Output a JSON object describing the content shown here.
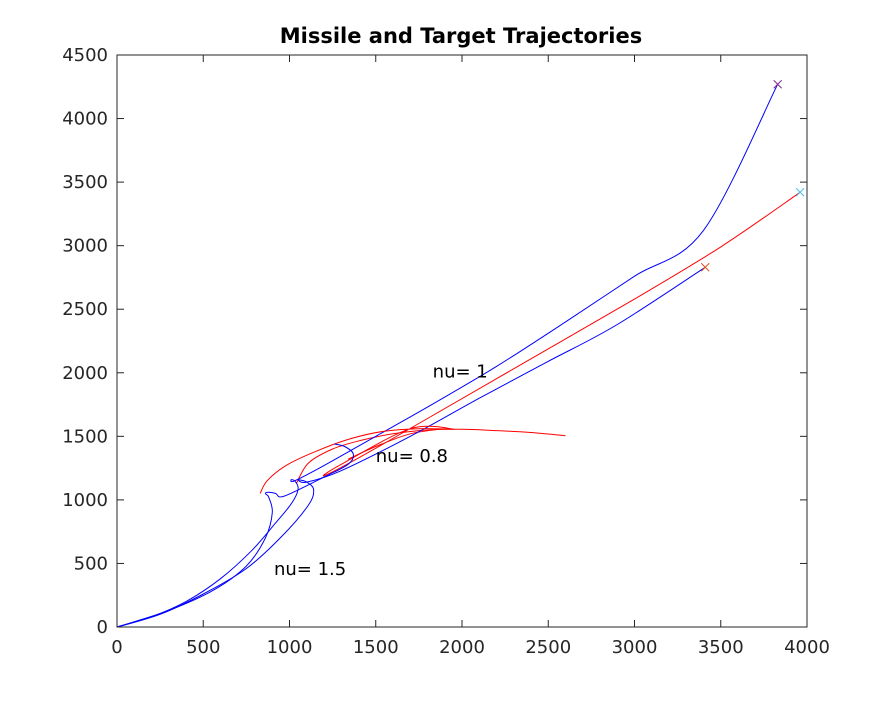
{
  "chart_data": {
    "type": "line",
    "title": "Missile and Target Trajectories",
    "xlabel": "",
    "ylabel": "",
    "xlim": [
      0,
      4000
    ],
    "ylim": [
      0,
      4500
    ],
    "xticks": [
      "0",
      "500",
      "1000",
      "1500",
      "2000",
      "2500",
      "3000",
      "3500",
      "4000"
    ],
    "yticks": [
      "0",
      "500",
      "1000",
      "1500",
      "2000",
      "2500",
      "3000",
      "3500",
      "4000",
      "4500"
    ],
    "grid": false,
    "annotations": [
      {
        "text": "nu= 1",
        "x": 1830,
        "y": 2010
      },
      {
        "text": "nu= 0.8",
        "x": 1500,
        "y": 1345
      },
      {
        "text": "nu= 1.5",
        "x": 910,
        "y": 455
      }
    ],
    "series": [
      {
        "kind": "target-path",
        "color": "#ff0000",
        "points": [
          [
            1040,
            1130
          ],
          [
            1110,
            1290
          ],
          [
            1250,
            1400
          ],
          [
            1420,
            1470
          ],
          [
            1600,
            1520
          ],
          [
            1800,
            1550
          ],
          [
            2000,
            1555
          ],
          [
            2200,
            1545
          ],
          [
            2400,
            1530
          ],
          [
            2600,
            1505
          ]
        ]
      },
      {
        "kind": "missile-path",
        "color": "#0000ff",
        "points": [
          [
            0,
            0
          ],
          [
            200,
            80
          ],
          [
            400,
            200
          ],
          [
            600,
            380
          ],
          [
            780,
            600
          ],
          [
            920,
            820
          ],
          [
            1000,
            950
          ],
          [
            1040,
            1040
          ],
          [
            1050,
            1100
          ],
          [
            1030,
            1150
          ],
          [
            1010,
            1160
          ],
          [
            1030,
            1150
          ],
          [
            1200,
            1270
          ],
          [
            1500,
            1500
          ],
          [
            1800,
            1730
          ],
          [
            2200,
            2050
          ],
          [
            2600,
            2400
          ],
          [
            3000,
            2760
          ],
          [
            3400,
            3120
          ],
          [
            3830,
            4270
          ]
        ]
      },
      {
        "kind": "target-path",
        "color": "#ff0000",
        "points": [
          [
            1340,
            1320
          ],
          [
            1500,
            1420
          ],
          [
            1700,
            1520
          ],
          [
            1900,
            1560
          ]
        ]
      },
      {
        "kind": "missile-path",
        "color": "#0000ff",
        "points": [
          [
            0,
            0
          ],
          [
            250,
            100
          ],
          [
            500,
            260
          ],
          [
            750,
            460
          ],
          [
            960,
            720
          ],
          [
            1110,
            960
          ],
          [
            1140,
            1080
          ],
          [
            1100,
            1140
          ],
          [
            1050,
            1160
          ],
          [
            1100,
            1140
          ],
          [
            1300,
            1230
          ],
          [
            1700,
            1500
          ],
          [
            2100,
            1800
          ],
          [
            2500,
            2090
          ],
          [
            2900,
            2380
          ],
          [
            3410,
            2830
          ]
        ]
      },
      {
        "kind": "target-path",
        "color": "#ff0000",
        "points": [
          [
            830,
            1050
          ],
          [
            870,
            1150
          ],
          [
            980,
            1270
          ],
          [
            1150,
            1380
          ],
          [
            1350,
            1480
          ],
          [
            1550,
            1540
          ],
          [
            1750,
            1560
          ],
          [
            1950,
            1555
          ],
          [
            1700,
            1560
          ],
          [
            1300,
            1280
          ],
          [
            1200,
            1190
          ],
          [
            1400,
            1330
          ],
          [
            1800,
            1640
          ],
          [
            2400,
            2110
          ],
          [
            3000,
            2580
          ],
          [
            3500,
            2990
          ],
          [
            3960,
            3420
          ]
        ]
      },
      {
        "kind": "missile-path",
        "color": "#0000ff",
        "points": [
          [
            0,
            0
          ],
          [
            300,
            130
          ],
          [
            560,
            290
          ],
          [
            750,
            480
          ],
          [
            860,
            700
          ],
          [
            900,
            900
          ],
          [
            880,
            1020
          ],
          [
            860,
            1050
          ],
          [
            880,
            1060
          ],
          [
            920,
            1050
          ],
          [
            970,
            1030
          ],
          [
            1200,
            1180
          ],
          [
            1340,
            1280
          ],
          [
            1370,
            1360
          ],
          [
            1320,
            1420
          ],
          [
            1260,
            1440
          ]
        ]
      }
    ],
    "end_markers": [
      {
        "x": 3830,
        "y": 4270,
        "color": "#7e2f8e"
      },
      {
        "x": 3960,
        "y": 3420,
        "color": "#4dbeee"
      },
      {
        "x": 3410,
        "y": 2830,
        "color": "#d95319"
      }
    ]
  }
}
